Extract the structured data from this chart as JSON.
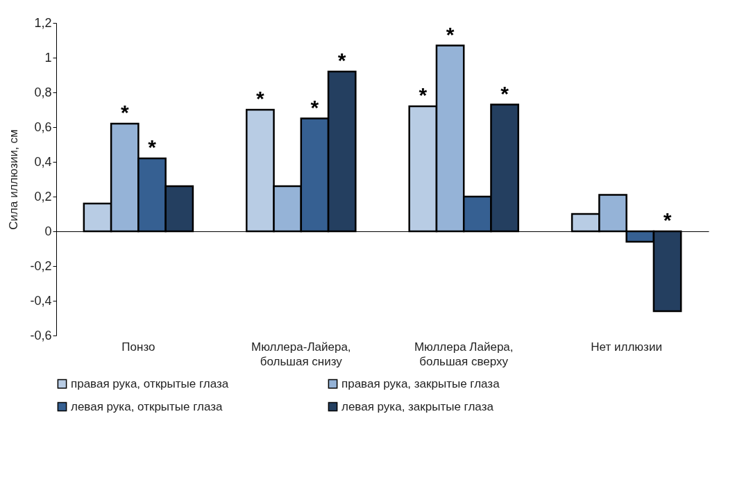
{
  "chart_data": {
    "type": "bar",
    "ylabel": "Сила иллюзии, см",
    "categories": [
      "Понзо",
      "Мюллера-Лайера,\nбольшая снизу",
      "Мюллера Лайера,\nбольшая сверху",
      "Нет иллюзии"
    ],
    "series": [
      {
        "name": "правая рука, открытые глаза",
        "color": "#b8cce4",
        "values": [
          0.16,
          0.7,
          0.72,
          0.1
        ],
        "value_labels": [
          null,
          "*",
          "*",
          null
        ]
      },
      {
        "name": "правая рука, закрытые глаза",
        "color": "#95b3d7",
        "values": [
          0.62,
          0.26,
          1.07,
          0.21
        ],
        "value_labels": [
          "*",
          null,
          "*",
          null
        ]
      },
      {
        "name": "левая рука, открытые глаза",
        "color": "#366092",
        "values": [
          0.42,
          0.65,
          0.2,
          -0.06
        ],
        "value_labels": [
          "*",
          "*",
          null,
          null
        ]
      },
      {
        "name": "левая рука, закрытые глаза",
        "color": "#243f60",
        "values": [
          0.26,
          0.92,
          0.73,
          -0.46
        ],
        "value_labels": [
          null,
          "*",
          "*",
          "*"
        ]
      }
    ],
    "ylim": [
      -0.6,
      1.2
    ],
    "yticks": [
      {
        "value": -0.6,
        "label": "-0,6"
      },
      {
        "value": -0.4,
        "label": "-0,4"
      },
      {
        "value": -0.2,
        "label": "-0,2"
      },
      0,
      {
        "value": 0.2,
        "label": "0,2"
      },
      {
        "value": 0.4,
        "label": "0,4"
      },
      {
        "value": 0.6,
        "label": "0,6"
      },
      {
        "value": 0.8,
        "label": "0,8"
      },
      1,
      {
        "value": 1.2,
        "label": "1,2"
      }
    ],
    "legend": "bottom"
  }
}
